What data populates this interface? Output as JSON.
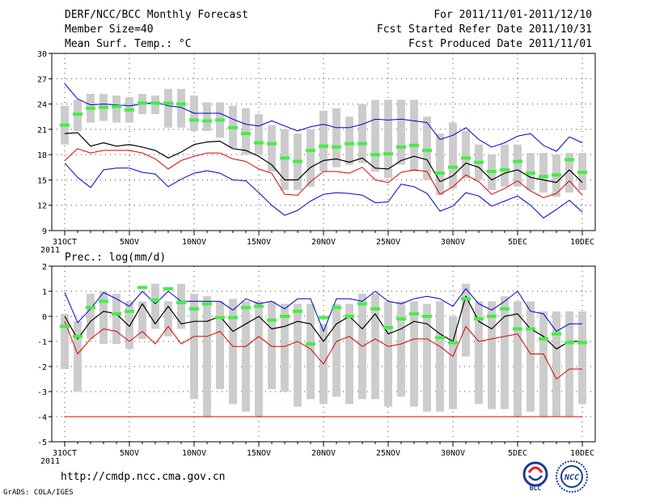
{
  "header": {
    "title": "DERF/NCC/BCC Monthly Forecast",
    "member_size": "Member Size=40",
    "variable": "Mean Surf. Temp.: °C",
    "period": "For 2011/11/01-2011/12/10",
    "started": "Fcst Started Refer Date 2011/10/31",
    "produced": "Fcst Produced Date 2011/11/01"
  },
  "footer": {
    "url": "http://cmdp.ncc.cma.gov.cn",
    "credit": "GrADS: COLA/IGES",
    "logo_bcc": "BCC",
    "logo_ncc": "NCC"
  },
  "colors": {
    "box": "#cccccc",
    "median": "#44ee44",
    "mean": "#000000",
    "p_high": "#0000cc",
    "p_low": "#dd0000",
    "grid": "#444444"
  },
  "chart_data": [
    {
      "type": "box_ensemble",
      "title": "Mean Surf. Temp.: °C",
      "xlabel": "",
      "ylabel": "",
      "ylim": [
        9,
        30
      ],
      "yticks": [
        9,
        12,
        15,
        18,
        21,
        24,
        27,
        30
      ],
      "xticks": [
        {
          "day": 0,
          "label": "31OCT"
        },
        {
          "day": 5,
          "label": "5NOV"
        },
        {
          "day": 10,
          "label": "10NOV"
        },
        {
          "day": 15,
          "label": "15NOV"
        },
        {
          "day": 20,
          "label": "20NOV"
        },
        {
          "day": 25,
          "label": "25NOV"
        },
        {
          "day": 30,
          "label": "30NOV"
        },
        {
          "day": 35,
          "label": "5DEC"
        },
        {
          "day": 40,
          "label": "10DEC"
        }
      ],
      "year_label": "2011",
      "days": [
        0,
        1,
        2,
        3,
        4,
        5,
        6,
        7,
        8,
        9,
        10,
        11,
        12,
        13,
        14,
        15,
        16,
        17,
        18,
        19,
        20,
        21,
        22,
        23,
        24,
        25,
        26,
        27,
        28,
        29,
        30,
        31,
        32,
        33,
        34,
        35,
        36,
        37,
        38,
        39,
        40
      ],
      "box_low": [
        19.2,
        20.8,
        21.8,
        22.0,
        21.8,
        21.8,
        22.8,
        22.8,
        21.2,
        21.2,
        20.8,
        20.8,
        20.0,
        18.8,
        18.0,
        18.0,
        16.0,
        13.8,
        13.8,
        14.2,
        16.0,
        16.5,
        16.8,
        17.0,
        16.0,
        15.2,
        16.8,
        16.0,
        15.0,
        13.2,
        14.0,
        15.2,
        15.0,
        13.8,
        14.2,
        14.2,
        13.8,
        13.5,
        13.0,
        13.5,
        13.8
      ],
      "box_high": [
        23.8,
        24.5,
        25.2,
        25.2,
        25.0,
        24.8,
        25.2,
        25.0,
        25.8,
        25.8,
        25.0,
        24.2,
        24.2,
        23.8,
        23.5,
        22.8,
        21.5,
        21.0,
        20.5,
        21.0,
        23.2,
        23.5,
        22.5,
        24.0,
        24.5,
        24.5,
        24.5,
        24.5,
        22.5,
        20.5,
        21.8,
        20.8,
        19.2,
        18.0,
        19.2,
        19.2,
        18.2,
        18.2,
        18.0,
        18.2,
        18.2
      ],
      "median": [
        21.5,
        22.8,
        23.5,
        23.6,
        23.7,
        23.3,
        24.1,
        24.1,
        24.1,
        24.0,
        22.1,
        22.0,
        22.1,
        21.2,
        20.5,
        19.4,
        19.3,
        17.6,
        17.2,
        18.5,
        19.0,
        18.9,
        19.3,
        19.3,
        18.0,
        18.1,
        18.9,
        19.1,
        18.5,
        15.8,
        16.5,
        17.6,
        17.1,
        16.0,
        16.2,
        17.2,
        15.8,
        15.4,
        15.6,
        17.4,
        15.9
      ],
      "mean": [
        20.5,
        20.6,
        19.0,
        19.4,
        19.0,
        19.2,
        18.9,
        18.5,
        17.6,
        18.3,
        19.2,
        19.5,
        19.6,
        18.7,
        18.5,
        17.8,
        16.8,
        15.0,
        15.0,
        16.5,
        17.3,
        17.5,
        17.1,
        17.6,
        16.4,
        16.3,
        17.3,
        17.8,
        17.4,
        14.8,
        15.5,
        17.0,
        16.5,
        15.0,
        15.8,
        16.2,
        15.3,
        15.0,
        14.7,
        16.2,
        14.7
      ],
      "p_high": [
        26.4,
        24.6,
        23.9,
        24.0,
        23.9,
        23.8,
        24.0,
        24.2,
        23.8,
        23.6,
        22.9,
        22.9,
        22.9,
        22.2,
        21.6,
        21.4,
        22.0,
        21.4,
        20.8,
        21.3,
        21.6,
        21.2,
        21.2,
        21.6,
        22.2,
        22.1,
        22.2,
        22.0,
        21.8,
        19.8,
        20.3,
        21.2,
        19.8,
        18.9,
        19.4,
        20.2,
        20.5,
        19.1,
        18.4,
        20.1,
        19.4
      ],
      "p_low": [
        17.3,
        18.7,
        18.2,
        18.5,
        18.5,
        18.5,
        18.2,
        17.5,
        16.3,
        17.3,
        17.8,
        18.2,
        18.2,
        17.5,
        17.2,
        16.3,
        15.8,
        13.3,
        13.2,
        14.8,
        16.0,
        16.0,
        15.8,
        16.5,
        15.0,
        14.7,
        15.9,
        16.2,
        16.0,
        13.3,
        14.2,
        15.6,
        14.8,
        13.3,
        14.0,
        14.9,
        13.7,
        12.9,
        13.4,
        14.9,
        13.2
      ],
      "p_min": [
        17.0,
        15.3,
        14.1,
        16.2,
        16.4,
        16.4,
        15.9,
        15.7,
        14.2,
        15.1,
        15.8,
        16.1,
        15.8,
        15.0,
        14.9,
        13.5,
        12.0,
        10.8,
        11.4,
        12.5,
        13.3,
        13.5,
        13.4,
        13.2,
        12.3,
        12.4,
        14.5,
        14.2,
        13.4,
        11.3,
        11.9,
        13.5,
        13.1,
        11.9,
        12.5,
        13.1,
        12.0,
        10.5,
        11.5,
        12.6,
        11.2
      ]
    },
    {
      "type": "box_ensemble",
      "title": "Prec.: log(mm/d)",
      "xlabel": "",
      "ylabel": "",
      "ylim": [
        -5,
        2
      ],
      "yticks": [
        -5,
        -4,
        -3,
        -2,
        -1,
        0,
        1,
        2
      ],
      "xticks": [
        {
          "day": 0,
          "label": "31OCT"
        },
        {
          "day": 5,
          "label": "5NOV"
        },
        {
          "day": 10,
          "label": "10NOV"
        },
        {
          "day": 15,
          "label": "15NOV"
        },
        {
          "day": 20,
          "label": "20NOV"
        },
        {
          "day": 25,
          "label": "25NOV"
        },
        {
          "day": 30,
          "label": "30NOV"
        },
        {
          "day": 35,
          "label": "5DEC"
        },
        {
          "day": 40,
          "label": "10DEC"
        }
      ],
      "year_label": "2011",
      "days": [
        0,
        1,
        2,
        3,
        4,
        5,
        6,
        7,
        8,
        9,
        10,
        11,
        12,
        13,
        14,
        15,
        16,
        17,
        18,
        19,
        20,
        21,
        22,
        23,
        24,
        25,
        26,
        27,
        28,
        29,
        30,
        31,
        32,
        33,
        34,
        35,
        36,
        37,
        38,
        39,
        40
      ],
      "box_low": [
        -2.1,
        -3.0,
        -0.9,
        -1.1,
        -1.1,
        -1.3,
        -0.9,
        -0.5,
        -0.8,
        -0.5,
        -3.3,
        -4.0,
        -2.9,
        -3.5,
        -3.8,
        -4.0,
        -2.9,
        -3.0,
        -3.6,
        -3.3,
        -3.5,
        -3.2,
        -3.5,
        -3.3,
        -3.3,
        -3.6,
        -3.2,
        -3.6,
        -3.8,
        -3.8,
        -3.7,
        -1.6,
        -3.5,
        -3.7,
        -3.7,
        -4.0,
        -3.8,
        -4.0,
        -4.0,
        -4.0,
        -3.5
      ],
      "box_high": [
        0.1,
        -0.2,
        0.9,
        1.0,
        0.9,
        0.6,
        0.6,
        1.3,
        0.6,
        1.3,
        0.9,
        0.8,
        0.6,
        0.7,
        0.6,
        0.6,
        0.6,
        0.5,
        0.5,
        0.5,
        -0.3,
        0.5,
        0.5,
        0.9,
        0.9,
        0.6,
        0.6,
        0.6,
        0.5,
        0.6,
        0.0,
        1.3,
        0.6,
        0.6,
        0.8,
        0.6,
        0.6,
        0.2,
        0.2,
        0.2,
        0.2
      ],
      "median": [
        -0.4,
        -0.8,
        0.35,
        0.6,
        0.1,
        0.2,
        1.15,
        0.65,
        1.1,
        0.55,
        0.3,
        0.5,
        -0.05,
        -0.05,
        0.35,
        0.4,
        -0.15,
        0.0,
        0.2,
        -1.1,
        -0.05,
        0.35,
        0.0,
        0.5,
        0.3,
        -0.45,
        -0.1,
        0.1,
        0.0,
        -0.85,
        -1.05,
        0.7,
        -0.1,
        0.0,
        0.3,
        -0.5,
        -0.5,
        -0.9,
        -0.7,
        -1.05,
        -1.05
      ],
      "mean": [
        0.0,
        -0.9,
        -0.2,
        0.2,
        0.1,
        -0.4,
        0.5,
        -0.3,
        0.4,
        -0.3,
        -0.2,
        -0.2,
        0.0,
        -0.6,
        -0.3,
        0.0,
        -0.5,
        -0.4,
        -0.2,
        -0.3,
        -1.0,
        -0.3,
        0.0,
        -0.5,
        0.1,
        -0.7,
        -0.5,
        -0.2,
        -0.3,
        -0.7,
        -1.0,
        0.8,
        -0.2,
        -0.5,
        0.0,
        0.1,
        -0.5,
        -0.8,
        -1.3,
        -1.0,
        -1.0
      ],
      "p_high": [
        0.95,
        -0.25,
        0.3,
        0.95,
        0.7,
        0.4,
        1.0,
        0.5,
        1.0,
        0.6,
        0.6,
        0.6,
        0.6,
        0.25,
        0.7,
        0.5,
        0.6,
        0.3,
        0.7,
        0.7,
        -0.6,
        0.7,
        0.7,
        0.6,
        1.0,
        0.6,
        0.5,
        0.7,
        0.8,
        0.7,
        0.4,
        1.1,
        0.5,
        0.25,
        0.6,
        1.0,
        0.2,
        0.1,
        -0.6,
        -0.3,
        -0.3
      ],
      "p_low": [
        -0.2,
        -1.5,
        -0.9,
        -0.5,
        -0.6,
        -1.0,
        -0.6,
        -1.1,
        -0.4,
        -1.1,
        -0.8,
        -0.8,
        -0.6,
        -1.2,
        -1.2,
        -0.8,
        -1.2,
        -1.2,
        -1.0,
        -1.3,
        -1.9,
        -1.0,
        -0.8,
        -1.2,
        -0.9,
        -1.2,
        -1.1,
        -0.9,
        -0.9,
        -1.2,
        -1.6,
        -0.4,
        -1.0,
        -0.9,
        -0.8,
        -0.7,
        -1.5,
        -1.5,
        -2.5,
        -2.1,
        -2.1
      ],
      "p_min": [
        -4,
        -4,
        -4,
        -4,
        -4,
        -4,
        -4,
        -4,
        -4,
        -4,
        -4,
        -4,
        -4,
        -4,
        -4,
        -4,
        -4,
        -4,
        -4,
        -4,
        -4,
        -4,
        -4,
        -4,
        -4,
        -4,
        -4,
        -4,
        -4,
        -4,
        -4,
        -4,
        -4,
        -4,
        -4,
        -4,
        -4,
        -4,
        -4,
        -4,
        -4
      ]
    }
  ]
}
